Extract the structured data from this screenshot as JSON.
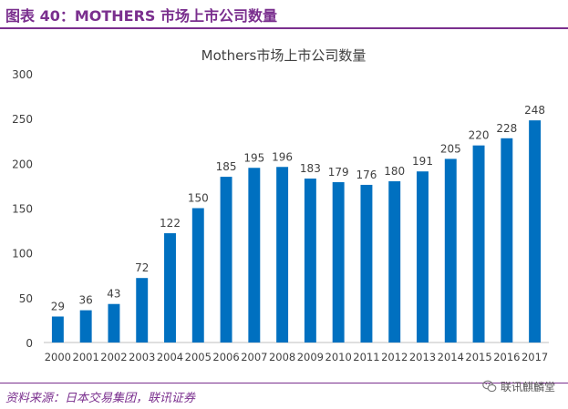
{
  "header": {
    "title": "图表 40：MOTHERS 市场上市公司数量"
  },
  "footer": {
    "source": "资料来源：日本交易集团，联讯证券",
    "watermark": "联讯麒麟堂"
  },
  "colors": {
    "bar": "#0070c0",
    "accent": "#7a2f8e",
    "axis": "#bfbfbf",
    "text": "#404040"
  },
  "chart_data": {
    "type": "bar",
    "title": "Mothers市场上市公司数量",
    "categories": [
      "2000",
      "2001",
      "2002",
      "2003",
      "2004",
      "2005",
      "2006",
      "2007",
      "2008",
      "2009",
      "2010",
      "2011",
      "2012",
      "2013",
      "2014",
      "2015",
      "2016",
      "2017"
    ],
    "values": [
      29,
      36,
      43,
      72,
      122,
      150,
      185,
      195,
      196,
      183,
      179,
      176,
      180,
      191,
      205,
      220,
      228,
      248
    ],
    "ylim": [
      0,
      300
    ],
    "yticks": [
      "0",
      "50",
      "100",
      "150",
      "200",
      "250",
      "300"
    ],
    "grid": false,
    "legend": "none"
  }
}
